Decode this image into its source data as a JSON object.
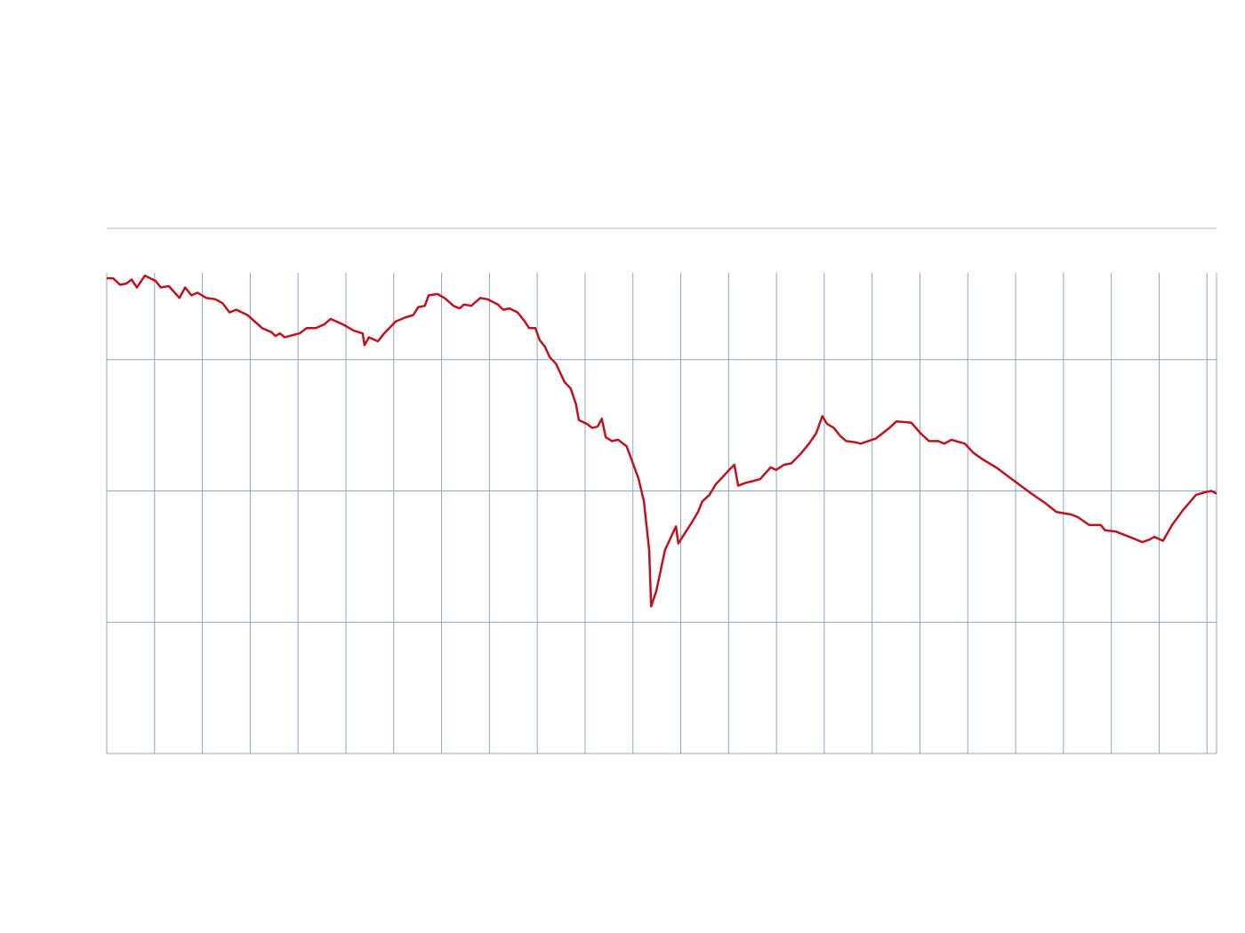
{
  "chart_data": {
    "type": "line",
    "x": [
      0,
      0.13,
      0.28,
      0.41,
      0.52,
      0.63,
      0.8,
      1.02,
      1.13,
      1.3,
      1.52,
      1.64,
      1.77,
      1.9,
      2.08,
      2.27,
      2.42,
      2.57,
      2.71,
      2.94,
      3.16,
      3.25,
      3.44,
      3.53,
      3.62,
      3.72,
      4.03,
      4.18,
      4.37,
      4.55,
      4.68,
      4.93,
      5.17,
      5.35,
      5.39,
      5.48,
      5.67,
      5.8,
      6.04,
      6.23,
      6.41,
      6.51,
      6.65,
      6.73,
      6.91,
      7.06,
      7.25,
      7.38,
      7.47,
      7.62,
      7.81,
      7.96,
      8.18,
      8.29,
      8.42,
      8.59,
      8.74,
      8.83,
      8.96,
      9.05,
      9.16,
      9.26,
      9.39,
      9.57,
      9.7,
      9.81,
      9.87,
      10.04,
      10.15,
      10.26,
      10.35,
      10.43,
      10.56,
      10.69,
      10.87,
      10.97,
      11.12,
      11.23,
      11.34,
      11.38,
      11.49,
      11.67,
      11.9,
      11.95,
      12.23,
      12.36,
      12.45,
      12.6,
      12.73,
      12.91,
      13.01,
      13.12,
      13.2,
      13.35,
      13.66,
      13.88,
      13.99,
      14.16,
      14.31,
      14.5,
      14.68,
      14.83,
      14.96,
      15.06,
      15.2,
      15.33,
      15.46,
      15.65,
      15.76,
      16.08,
      16.36,
      16.51,
      16.82,
      17.01,
      17.19,
      17.38,
      17.51,
      17.66,
      17.94,
      18.12,
      18.31,
      18.59,
      18.96,
      19.33,
      19.61,
      19.85,
      20.17,
      20.3,
      20.54,
      20.78,
      20.87,
      21.1,
      21.38,
      21.65,
      21.8,
      21.9,
      22.08,
      22.27,
      22.49,
      22.77,
      22.96,
      23.09,
      23.2
    ],
    "values": [
      3.62,
      3.62,
      3.57,
      3.58,
      3.61,
      3.55,
      3.64,
      3.6,
      3.55,
      3.56,
      3.47,
      3.55,
      3.49,
      3.51,
      3.47,
      3.46,
      3.43,
      3.36,
      3.38,
      3.34,
      3.27,
      3.24,
      3.21,
      3.18,
      3.2,
      3.17,
      3.2,
      3.24,
      3.24,
      3.27,
      3.31,
      3.27,
      3.22,
      3.2,
      3.11,
      3.17,
      3.14,
      3.2,
      3.29,
      3.32,
      3.34,
      3.4,
      3.41,
      3.49,
      3.5,
      3.47,
      3.41,
      3.39,
      3.42,
      3.41,
      3.47,
      3.46,
      3.42,
      3.38,
      3.39,
      3.36,
      3.29,
      3.24,
      3.24,
      3.15,
      3.1,
      3.02,
      2.97,
      2.83,
      2.78,
      2.66,
      2.54,
      2.51,
      2.48,
      2.49,
      2.55,
      2.41,
      2.38,
      2.39,
      2.34,
      2.24,
      2.09,
      1.92,
      1.55,
      1.12,
      1.24,
      1.55,
      1.73,
      1.6,
      1.76,
      1.84,
      1.92,
      1.97,
      2.05,
      2.12,
      2.16,
      2.2,
      2.04,
      2.06,
      2.09,
      2.18,
      2.16,
      2.2,
      2.21,
      2.28,
      2.36,
      2.44,
      2.57,
      2.51,
      2.48,
      2.42,
      2.38,
      2.37,
      2.36,
      2.4,
      2.48,
      2.53,
      2.52,
      2.44,
      2.38,
      2.38,
      2.36,
      2.39,
      2.36,
      2.29,
      2.24,
      2.18,
      2.08,
      1.98,
      1.91,
      1.84,
      1.82,
      1.8,
      1.74,
      1.74,
      1.7,
      1.69,
      1.65,
      1.61,
      1.63,
      1.65,
      1.62,
      1.74,
      1.85,
      1.97,
      1.99,
      2,
      1.98
    ],
    "color": "#c0111f",
    "xlim": [
      0,
      23.2
    ],
    "xticks": [
      0,
      1,
      2,
      3,
      4,
      5,
      6,
      7,
      8,
      9,
      10,
      11,
      12,
      13,
      14,
      15,
      16,
      17,
      18,
      19,
      20,
      21,
      22,
      23
    ],
    "ylim": [
      0,
      4
    ],
    "yticks": [
      0,
      1,
      2,
      3,
      4
    ],
    "grid": true
  }
}
